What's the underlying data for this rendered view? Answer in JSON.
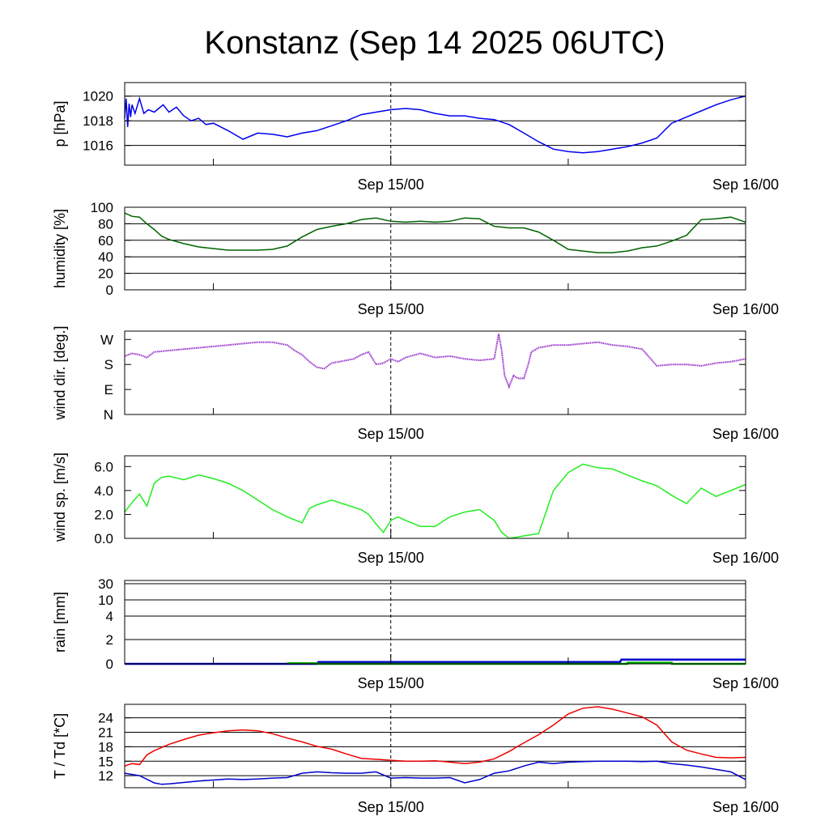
{
  "title": "Konstanz (Sep 14 2025 06UTC)",
  "colors": {
    "pressure": "#0000ee",
    "humidity": "#006400",
    "wind_dir": "#9932cc",
    "wind_speed": "#22ee22",
    "rain_blue": "#0000cc",
    "rain_green": "#00aa00",
    "temperature": "#ee0000",
    "dewpoint": "#0000cc"
  },
  "chart_data": [
    {
      "type": "line",
      "ylabel": "p [hPa]",
      "x_ticks": [
        "Sep 15/00",
        "Sep 16/00"
      ],
      "ylim": [
        1014.4,
        1021.1
      ],
      "y_ticks": [
        {
          "v": 1016,
          "label": "1016"
        },
        {
          "v": 1018,
          "label": "1018"
        },
        {
          "v": 1020,
          "label": "1020"
        }
      ],
      "grid": true,
      "series": [
        {
          "color_key": "pressure",
          "x": [
            0,
            0.1,
            0.2,
            0.3,
            0.4,
            0.5,
            0.7,
            1.0,
            1.3,
            1.6,
            2.0,
            2.3,
            2.6,
            3.0,
            3.5,
            4.0,
            4.5,
            5.0,
            5.5,
            6.0,
            7.0,
            8.0,
            9.0,
            10.0,
            11.0,
            12.0,
            13.0,
            14.0,
            15.0,
            16.0,
            17.0,
            18.0,
            19.0,
            20.0,
            21.0,
            22.0,
            23.0,
            24.0,
            25.0,
            26.0,
            27.0,
            28.0,
            29.0,
            30.0,
            31.0,
            32.0,
            33.0,
            34.0,
            35.0,
            36.0,
            37.0,
            38.0,
            39.0,
            40.0,
            41.0,
            42.0
          ],
          "y": [
            1018.2,
            1019.8,
            1017.5,
            1019.4,
            1018.3,
            1019.3,
            1018.6,
            1019.8,
            1018.6,
            1018.9,
            1018.7,
            1019.0,
            1019.3,
            1018.7,
            1019.1,
            1018.4,
            1018.0,
            1018.2,
            1017.7,
            1017.8,
            1017.2,
            1016.5,
            1017.0,
            1016.9,
            1016.7,
            1017.0,
            1017.2,
            1017.6,
            1018.0,
            1018.5,
            1018.7,
            1018.9,
            1019.0,
            1018.9,
            1018.6,
            1018.4,
            1018.4,
            1018.2,
            1018.1,
            1017.7,
            1017.0,
            1016.3,
            1015.7,
            1015.5,
            1015.4,
            1015.5,
            1015.7,
            1015.9,
            1016.2,
            1016.6,
            1017.8,
            1018.3,
            1018.8,
            1019.3,
            1019.7,
            1020.0
          ]
        }
      ]
    },
    {
      "type": "line",
      "ylabel": "humidity [%]",
      "x_ticks": [
        "Sep 15/00",
        "Sep 16/00"
      ],
      "ylim": [
        0,
        100
      ],
      "y_ticks": [
        {
          "v": 0,
          "label": "0"
        },
        {
          "v": 20,
          "label": "20"
        },
        {
          "v": 40,
          "label": "40"
        },
        {
          "v": 60,
          "label": "60"
        },
        {
          "v": 80,
          "label": "80"
        },
        {
          "v": 100,
          "label": "100"
        }
      ],
      "grid": true,
      "series": [
        {
          "color_key": "humidity",
          "x": [
            0,
            0.5,
            1,
            1.5,
            2,
            2.5,
            3,
            4,
            5,
            6,
            7,
            8,
            9,
            10,
            11,
            12,
            13,
            14,
            15,
            16,
            17,
            18,
            19,
            20,
            21,
            22,
            23,
            24,
            25,
            26,
            27,
            28,
            29,
            30,
            31,
            32,
            33,
            34,
            35,
            36,
            37,
            38,
            39,
            40,
            41,
            42
          ],
          "y": [
            93,
            89,
            88,
            80,
            73,
            65,
            61,
            56,
            52,
            50,
            48,
            48,
            48,
            49,
            53,
            64,
            73,
            77,
            80,
            85,
            87,
            83,
            82,
            83,
            82,
            83,
            87,
            86,
            77,
            75,
            75,
            70,
            60,
            49,
            47,
            45,
            45,
            47,
            51,
            53,
            59,
            66,
            85,
            86,
            88,
            82
          ]
        }
      ]
    },
    {
      "type": "scatter",
      "ylabel": "wind dir. [deg.]",
      "x_ticks": [
        "Sep 15/00",
        "Sep 16/00"
      ],
      "ylim": [
        0,
        300
      ],
      "y_ticks": [
        {
          "v": 0,
          "label": "N"
        },
        {
          "v": 90,
          "label": "E"
        },
        {
          "v": 180,
          "label": "S"
        },
        {
          "v": 270,
          "label": "W"
        }
      ],
      "grid": false,
      "series": [
        {
          "color_key": "wind_dir",
          "x": [
            0,
            0.5,
            1,
            1.5,
            2,
            3,
            4,
            5,
            6,
            7,
            8,
            9,
            10,
            11,
            11.5,
            12,
            12.5,
            13,
            13.5,
            14,
            14.5,
            15,
            15.5,
            16,
            16.5,
            17,
            17.5,
            18,
            18.5,
            19,
            20,
            21,
            22,
            23,
            24,
            25,
            25.3,
            25.5,
            25.7,
            26,
            26.3,
            26.6,
            27,
            27.3,
            27.5,
            28,
            29,
            30,
            31,
            32,
            33,
            34,
            35,
            36,
            37,
            38,
            39,
            40,
            41,
            42
          ],
          "y": [
            210,
            220,
            215,
            205,
            225,
            230,
            235,
            240,
            245,
            250,
            255,
            260,
            260,
            250,
            230,
            215,
            190,
            170,
            165,
            185,
            190,
            195,
            200,
            215,
            225,
            180,
            185,
            200,
            190,
            205,
            220,
            205,
            210,
            200,
            195,
            200,
            290,
            230,
            140,
            100,
            140,
            130,
            130,
            180,
            225,
            240,
            250,
            250,
            255,
            260,
            250,
            245,
            235,
            175,
            180,
            180,
            175,
            185,
            190,
            200
          ]
        }
      ]
    },
    {
      "type": "line",
      "ylabel": "wind sp. [m/s]",
      "x_ticks": [
        "Sep 15/00",
        "Sep 16/00"
      ],
      "ylim": [
        0,
        6.9
      ],
      "y_ticks": [
        {
          "v": 0,
          "label": "0.0"
        },
        {
          "v": 2,
          "label": "2.0"
        },
        {
          "v": 4,
          "label": "4.0"
        },
        {
          "v": 6,
          "label": "6.0"
        }
      ],
      "grid": false,
      "series": [
        {
          "color_key": "wind_speed",
          "x": [
            0,
            0.5,
            1,
            1.5,
            2,
            2.5,
            3,
            4,
            5,
            6,
            7,
            8,
            9,
            10,
            11,
            12,
            12.5,
            13,
            14,
            15,
            16,
            16.5,
            17,
            17.5,
            18,
            18.5,
            19,
            20,
            21,
            22,
            23,
            24,
            25,
            25.5,
            26,
            27,
            28,
            29,
            30,
            31,
            32,
            33,
            34,
            35,
            35.5,
            36,
            37,
            38,
            39,
            40,
            41,
            42
          ],
          "y": [
            2.2,
            3.0,
            3.7,
            2.7,
            4.6,
            5.1,
            5.2,
            4.9,
            5.3,
            5.0,
            4.6,
            4.0,
            3.2,
            2.4,
            1.8,
            1.3,
            2.5,
            2.8,
            3.2,
            2.8,
            2.4,
            2.0,
            1.2,
            0.5,
            1.5,
            1.8,
            1.5,
            1.0,
            1.0,
            1.8,
            2.2,
            2.4,
            1.5,
            0.5,
            0.0,
            0.2,
            0.4,
            4.0,
            5.5,
            6.2,
            5.9,
            5.8,
            5.3,
            4.8,
            4.6,
            4.4,
            3.6,
            2.9,
            4.2,
            3.5,
            4.0,
            4.5
          ]
        }
      ]
    },
    {
      "type": "area",
      "ylabel": "rain [mm]",
      "x_ticks": [
        "Sep 15/00",
        "Sep 16/00"
      ],
      "scale": "nonlinear",
      "ylim": [
        0,
        31
      ],
      "y_ticks": [
        {
          "v": 0,
          "label": "0"
        },
        {
          "v": 2,
          "label": "2"
        },
        {
          "v": 4,
          "label": "4"
        },
        {
          "v": 10,
          "label": "10"
        },
        {
          "v": 30,
          "label": "30"
        }
      ],
      "grid": true,
      "series": [
        {
          "color_key": "rain_blue",
          "x": [
            0,
            13.0,
            13.1,
            33.5,
            33.6,
            42
          ],
          "y": [
            0,
            0,
            0.15,
            0.15,
            0.35,
            0.35
          ]
        },
        {
          "color_key": "rain_green",
          "x": [
            11,
            13,
            13.01,
            34,
            34.01,
            37,
            37.01,
            42
          ],
          "y": [
            0.05,
            0.05,
            0,
            0,
            0.1,
            0.1,
            0,
            0
          ]
        }
      ]
    },
    {
      "type": "line",
      "ylabel": "T / Td [*C]",
      "x_ticks": [
        "Sep 15/00",
        "Sep 16/00"
      ],
      "ylim": [
        9.5,
        26.8
      ],
      "y_ticks": [
        {
          "v": 12,
          "label": "12"
        },
        {
          "v": 15,
          "label": "15"
        },
        {
          "v": 18,
          "label": "18"
        },
        {
          "v": 21,
          "label": "21"
        },
        {
          "v": 24,
          "label": "24"
        }
      ],
      "grid": true,
      "series": [
        {
          "color_key": "temperature",
          "x": [
            0,
            0.5,
            1,
            1.5,
            2,
            3,
            4,
            5,
            6,
            7,
            8,
            9,
            10,
            11,
            12,
            13,
            14,
            15,
            16,
            17,
            18,
            19,
            20,
            21,
            22,
            23,
            24,
            25,
            26,
            27,
            28,
            29,
            30,
            31,
            32,
            33,
            34,
            35,
            36,
            37,
            38,
            39,
            40,
            41,
            42
          ],
          "y": [
            14.0,
            14.5,
            14.3,
            16.3,
            17.2,
            18.5,
            19.5,
            20.4,
            20.9,
            21.3,
            21.5,
            21.3,
            20.7,
            19.8,
            19.0,
            18.1,
            17.5,
            16.5,
            15.6,
            15.4,
            15.2,
            15.0,
            15.0,
            15.1,
            14.8,
            14.5,
            14.8,
            15.5,
            17.0,
            18.8,
            20.5,
            22.5,
            24.8,
            26.0,
            26.3,
            25.8,
            25.0,
            24.2,
            22.5,
            19.0,
            17.3,
            16.5,
            15.8,
            15.7,
            15.8
          ]
        },
        {
          "color_key": "dewpoint",
          "x": [
            0,
            1,
            2,
            2.5,
            3,
            4,
            5,
            6,
            7,
            8,
            9,
            10,
            11,
            12,
            13,
            14,
            15,
            16,
            17,
            18,
            19,
            20,
            21,
            22,
            23,
            24,
            25,
            26,
            27,
            28,
            29,
            30,
            31,
            32,
            33,
            34,
            35,
            36,
            37,
            38,
            39,
            40,
            41,
            42
          ],
          "y": [
            12.5,
            12.0,
            10.5,
            10.2,
            10.3,
            10.6,
            10.9,
            11.1,
            11.3,
            11.2,
            11.3,
            11.5,
            11.6,
            12.5,
            12.8,
            12.6,
            12.5,
            12.5,
            12.8,
            11.5,
            11.6,
            11.5,
            11.5,
            11.6,
            10.5,
            11.2,
            12.5,
            13.0,
            14.0,
            14.8,
            14.5,
            14.8,
            14.9,
            15.0,
            15.0,
            15.0,
            14.9,
            15.0,
            14.5,
            14.2,
            13.8,
            13.3,
            12.8,
            11.2
          ]
        }
      ]
    }
  ]
}
